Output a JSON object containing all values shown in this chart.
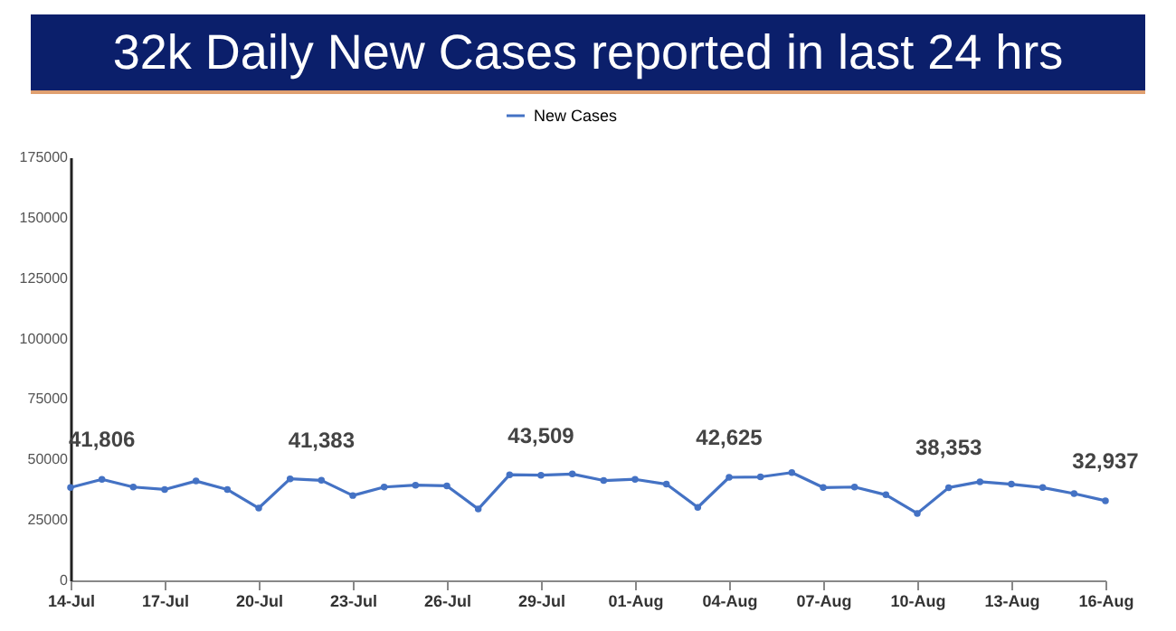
{
  "chart_data": {
    "type": "line",
    "title": "32k Daily New Cases reported in last 24 hrs",
    "categories": [
      "14-Jul",
      null,
      null,
      "17-Jul",
      null,
      null,
      "20-Jul",
      null,
      null,
      "23-Jul",
      null,
      null,
      "26-Jul",
      null,
      null,
      "29-Jul",
      null,
      null,
      "01-Aug",
      null,
      null,
      "04-Aug",
      null,
      null,
      "07-Aug",
      null,
      null,
      "10-Aug",
      null,
      null,
      "13-Aug",
      null,
      null,
      "16-Aug"
    ],
    "series": [
      {
        "name": "New Cases",
        "color": "#4472c4",
        "values": [
          38400,
          41806,
          38600,
          37600,
          41100,
          37600,
          29900,
          42000,
          41383,
          35100,
          38600,
          39400,
          39100,
          29500,
          43700,
          43509,
          44000,
          41300,
          41800,
          39800,
          30200,
          42625,
          42800,
          44600,
          38400,
          38600,
          35400,
          27700,
          38353,
          40800,
          39800,
          38400,
          35900,
          32937
        ],
        "value_labels": [
          null,
          "41,806",
          null,
          null,
          null,
          null,
          null,
          null,
          "41,383",
          null,
          null,
          null,
          null,
          null,
          null,
          "43,509",
          null,
          null,
          null,
          null,
          null,
          "42,625",
          null,
          null,
          null,
          null,
          null,
          null,
          "38,353",
          null,
          null,
          null,
          null,
          "32,937"
        ]
      }
    ],
    "ylim": [
      0,
      175000
    ],
    "yticks": [
      0,
      25000,
      50000,
      75000,
      100000,
      125000,
      150000,
      175000
    ],
    "grid": false,
    "legend": "top",
    "marker": "circle",
    "line_style": "solid"
  }
}
